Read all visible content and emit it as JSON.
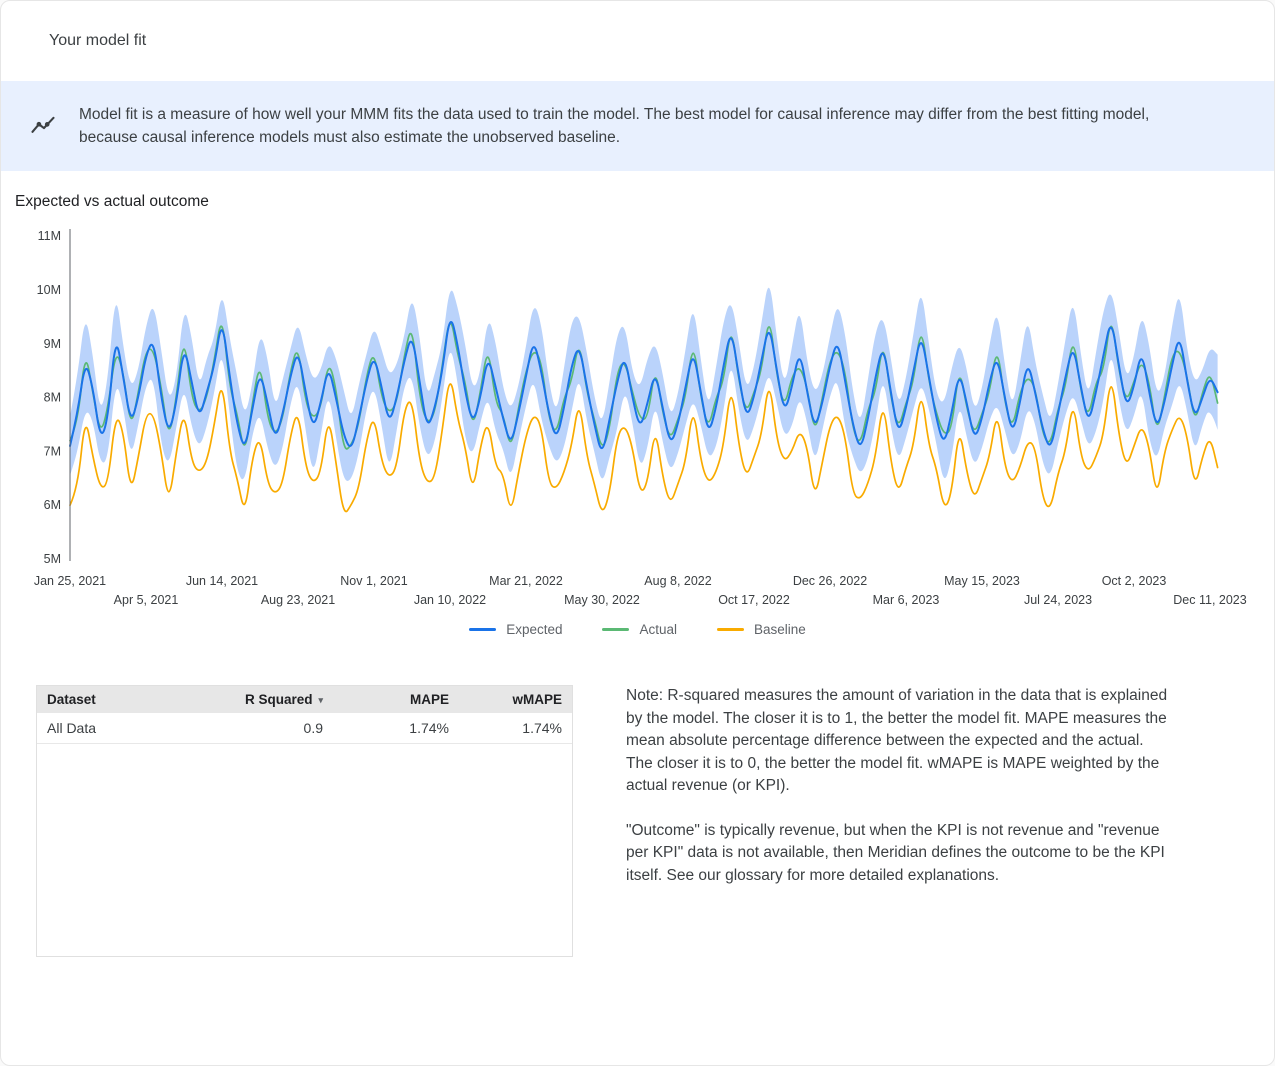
{
  "header": {
    "title": "Your model fit"
  },
  "banner": {
    "icon": "model-fit-line-chart-icon",
    "text": "Model fit is a measure of how well your MMM fits the data used to train the model. The best model for causal inference may differ from the best fitting model, because causal inference models must also estimate the unobserved baseline."
  },
  "chart": {
    "title": "Expected vs actual outcome"
  },
  "chart_data": {
    "type": "line",
    "title": "Expected vs actual outcome",
    "x_unit": "week",
    "grid": false,
    "legend_position": "bottom",
    "y_ticks": [
      "5M",
      "6M",
      "7M",
      "8M",
      "9M",
      "10M",
      "11M"
    ],
    "ylim_millions": [
      5,
      11
    ],
    "x_ticks": [
      "Jan 25, 2021",
      "Apr 5, 2021",
      "Jun 14, 2021",
      "Aug 23, 2021",
      "Nov 1, 2021",
      "Jan 10, 2022",
      "Mar 21, 2022",
      "May 30, 2022",
      "Aug 8, 2022",
      "Oct 17, 2022",
      "Dec 26, 2022",
      "Mar 6, 2023",
      "May 15, 2023",
      "Jul 24, 2023",
      "Oct 2, 2023",
      "Dec 11, 2023"
    ],
    "values_unit": "millions",
    "series": [
      {
        "name": "Expected",
        "color": "#1a73e8",
        "values": [
          7.1,
          7.7,
          8.7,
          8.2,
          7.2,
          7.6,
          9.2,
          8.4,
          7.5,
          8.0,
          8.8,
          9.1,
          8.0,
          7.3,
          7.9,
          9.0,
          8.3,
          7.6,
          8.1,
          8.6,
          9.5,
          8.4,
          7.5,
          7.0,
          7.8,
          8.5,
          7.9,
          7.2,
          7.7,
          8.4,
          8.9,
          8.1,
          7.4,
          7.9,
          8.6,
          8.0,
          7.3,
          7.0,
          7.6,
          8.3,
          8.8,
          8.2,
          7.5,
          8.0,
          8.7,
          9.2,
          8.3,
          7.4,
          7.8,
          8.5,
          9.6,
          9.0,
          8.1,
          7.5,
          8.0,
          8.8,
          8.2,
          7.6,
          7.1,
          7.7,
          8.4,
          9.1,
          8.5,
          7.7,
          7.2,
          7.8,
          8.6,
          9.0,
          8.2,
          7.5,
          6.9,
          7.6,
          8.3,
          8.8,
          8.0,
          7.4,
          7.9,
          8.5,
          7.8,
          7.1,
          7.5,
          8.2,
          8.9,
          8.1,
          7.3,
          7.8,
          8.6,
          9.3,
          8.4,
          7.6,
          8.0,
          8.7,
          9.4,
          8.5,
          7.7,
          8.2,
          8.9,
          8.1,
          7.4,
          7.9,
          8.6,
          9.1,
          8.3,
          7.5,
          7.0,
          7.6,
          8.4,
          9.0,
          8.1,
          7.3,
          7.8,
          8.5,
          9.2,
          8.4,
          7.6,
          7.1,
          7.7,
          8.5,
          7.9,
          7.2,
          7.6,
          8.3,
          8.8,
          8.0,
          7.3,
          7.9,
          8.7,
          8.1,
          7.4,
          7.0,
          7.7,
          8.4,
          9.0,
          8.2,
          7.5,
          8.1,
          8.8,
          9.5,
          8.6,
          7.8,
          8.2,
          8.9,
          8.1,
          7.4,
          7.9,
          8.6,
          9.2,
          8.3,
          7.6,
          8.0,
          8.4,
          8.1
        ]
      },
      {
        "name": "Actual",
        "color": "#5bb974",
        "values": [
          7.2,
          7.5,
          8.9,
          8.1,
          7.3,
          7.8,
          8.9,
          8.5,
          7.4,
          8.1,
          8.9,
          8.9,
          8.2,
          7.2,
          8.0,
          9.2,
          8.0,
          7.7,
          8.0,
          8.7,
          9.6,
          8.2,
          7.7,
          6.9,
          7.9,
          8.7,
          7.6,
          7.3,
          7.6,
          8.5,
          9.0,
          7.9,
          7.6,
          7.8,
          8.7,
          8.2,
          7.0,
          7.1,
          7.5,
          8.4,
          8.9,
          8.0,
          7.7,
          7.9,
          8.8,
          9.4,
          8.0,
          7.5,
          7.7,
          8.6,
          9.6,
          8.8,
          8.3,
          7.4,
          8.1,
          9.0,
          7.9,
          7.7,
          7.0,
          7.8,
          8.5,
          8.9,
          8.7,
          7.6,
          7.3,
          8.0,
          8.3,
          9.1,
          8.1,
          7.6,
          7.0,
          7.4,
          8.5,
          8.7,
          8.1,
          7.6,
          7.6,
          8.6,
          7.7,
          7.2,
          7.6,
          8.0,
          9.1,
          8.0,
          7.4,
          8.0,
          8.3,
          9.4,
          8.3,
          7.7,
          8.1,
          8.5,
          9.6,
          8.4,
          7.8,
          8.4,
          8.6,
          8.2,
          7.3,
          8.0,
          8.7,
          8.9,
          8.5,
          7.4,
          7.1,
          7.8,
          8.1,
          9.1,
          8.0,
          7.4,
          7.9,
          8.3,
          9.4,
          8.3,
          7.7,
          7.3,
          7.4,
          8.6,
          7.8,
          7.3,
          7.7,
          8.1,
          9.0,
          7.9,
          7.4,
          8.1,
          8.4,
          8.2,
          7.3,
          7.1,
          7.8,
          8.2,
          9.2,
          8.1,
          7.6,
          8.3,
          8.5,
          9.6,
          8.5,
          7.9,
          8.3,
          8.7,
          8.3,
          7.3,
          8.0,
          8.8,
          8.9,
          8.4,
          7.5,
          8.1,
          8.5,
          7.9
        ]
      },
      {
        "name": "Baseline",
        "color": "#f9ab00",
        "values": [
          6.0,
          6.3,
          7.7,
          6.9,
          6.3,
          6.4,
          7.7,
          7.4,
          6.2,
          6.9,
          7.7,
          7.7,
          7.0,
          6.0,
          7.0,
          7.8,
          6.8,
          6.6,
          6.8,
          7.5,
          8.4,
          7.0,
          6.5,
          5.8,
          6.9,
          7.3,
          6.4,
          6.2,
          6.4,
          7.3,
          7.8,
          6.7,
          6.4,
          6.6,
          7.7,
          6.8,
          5.8,
          6.0,
          6.3,
          7.2,
          7.7,
          6.8,
          6.5,
          6.7,
          7.8,
          8.0,
          6.8,
          6.4,
          6.5,
          7.4,
          8.5,
          7.6,
          7.1,
          6.2,
          7.1,
          7.6,
          6.7,
          6.6,
          5.8,
          6.6,
          7.3,
          7.7,
          7.5,
          6.4,
          6.3,
          6.6,
          7.1,
          8.0,
          6.9,
          6.4,
          5.8,
          6.2,
          7.3,
          7.5,
          7.1,
          6.2,
          6.4,
          7.5,
          6.5,
          6.0,
          6.4,
          6.8,
          7.9,
          6.8,
          6.4,
          6.6,
          7.1,
          8.3,
          7.1,
          6.5,
          6.9,
          7.3,
          8.4,
          7.2,
          6.8,
          7.0,
          7.4,
          7.1,
          6.1,
          6.8,
          7.5,
          7.7,
          7.3,
          6.2,
          6.1,
          6.4,
          6.9,
          8.0,
          6.8,
          6.2,
          6.7,
          7.1,
          8.2,
          7.1,
          6.7,
          5.9,
          6.2,
          7.5,
          6.6,
          6.1,
          6.5,
          6.9,
          7.8,
          6.7,
          6.4,
          6.7,
          7.2,
          7.1,
          6.1,
          5.9,
          6.6,
          7.0,
          8.0,
          6.9,
          6.6,
          6.9,
          7.3,
          8.5,
          7.3,
          6.7,
          7.1,
          7.5,
          7.1,
          6.1,
          7.0,
          7.4,
          7.7,
          7.3,
          6.3,
          6.9,
          7.3,
          6.7
        ]
      }
    ],
    "ci_band": {
      "series": "Expected",
      "color": "#aecbfa",
      "halfwidth": [
        0.55,
        0.7,
        0.9,
        0.6,
        0.45,
        0.75,
        0.85,
        0.55,
        0.65,
        0.5,
        0.55,
        0.7,
        0.9,
        0.6,
        0.45,
        0.75,
        0.85,
        0.55,
        0.65,
        0.5,
        0.55,
        0.7,
        0.9,
        0.6,
        0.45,
        0.75,
        0.85,
        0.55,
        0.65,
        0.5,
        0.55,
        0.7,
        0.9,
        0.6,
        0.45,
        0.75,
        0.85,
        0.55,
        0.65,
        0.5,
        0.55,
        0.7,
        0.9,
        0.6,
        0.45,
        0.75,
        0.85,
        0.55,
        0.65,
        0.5,
        0.55,
        0.7,
        0.9,
        0.6,
        0.45,
        0.75,
        0.85,
        0.55,
        0.65,
        0.5,
        0.55,
        0.7,
        0.9,
        0.6,
        0.45,
        0.75,
        0.85,
        0.55,
        0.65,
        0.5,
        0.55,
        0.7,
        0.9,
        0.6,
        0.45,
        0.75,
        0.85,
        0.55,
        0.65,
        0.5,
        0.55,
        0.7,
        0.9,
        0.6,
        0.45,
        0.75,
        0.85,
        0.55,
        0.65,
        0.5,
        0.55,
        0.7,
        0.9,
        0.6,
        0.45,
        0.75,
        0.85,
        0.55,
        0.65,
        0.5,
        0.55,
        0.7,
        0.9,
        0.6,
        0.45,
        0.75,
        0.85,
        0.55,
        0.65,
        0.5,
        0.55,
        0.7,
        0.9,
        0.6,
        0.45,
        0.75,
        0.85,
        0.55,
        0.65,
        0.5,
        0.55,
        0.7,
        0.9,
        0.6,
        0.45,
        0.75,
        0.85,
        0.55,
        0.65,
        0.5,
        0.55,
        0.7,
        0.9,
        0.6,
        0.45,
        0.75,
        0.85,
        0.55,
        0.65,
        0.5,
        0.55,
        0.7,
        0.9,
        0.6,
        0.45,
        0.75,
        0.85,
        0.55,
        0.65,
        0.5,
        0.55,
        0.7
      ]
    }
  },
  "table": {
    "headers": [
      {
        "label": "Dataset",
        "align": "left",
        "sortable": false
      },
      {
        "label": "R Squared",
        "align": "right",
        "sortable": true,
        "caret": "▾"
      },
      {
        "label": "MAPE",
        "align": "right",
        "sortable": false
      },
      {
        "label": "wMAPE",
        "align": "right",
        "sortable": false
      }
    ],
    "rows": [
      [
        "All Data",
        "0.9",
        "1.74%",
        "1.74%"
      ]
    ]
  },
  "notes": {
    "p1": "Note: R-squared measures the amount of variation in the data that is explained by the model. The closer it is to 1, the better the model fit. MAPE measures the mean absolute percentage difference between the expected and the actual. The closer it is to 0, the better the model fit. wMAPE is MAPE weighted by the actual revenue (or KPI).",
    "p2": "\"Outcome\" is typically revenue, but when the KPI is not revenue and \"revenue per KPI\" data is not available, then Meridian defines the outcome to be the KPI itself. See our glossary for more detailed explanations."
  },
  "colors": {
    "banner_bg": "#e8f0fe",
    "expected_blue": "#1a73e8",
    "actual_green": "#5bb974",
    "baseline_orange": "#f9ab00",
    "ci_band_blue": "#aecbfa"
  }
}
